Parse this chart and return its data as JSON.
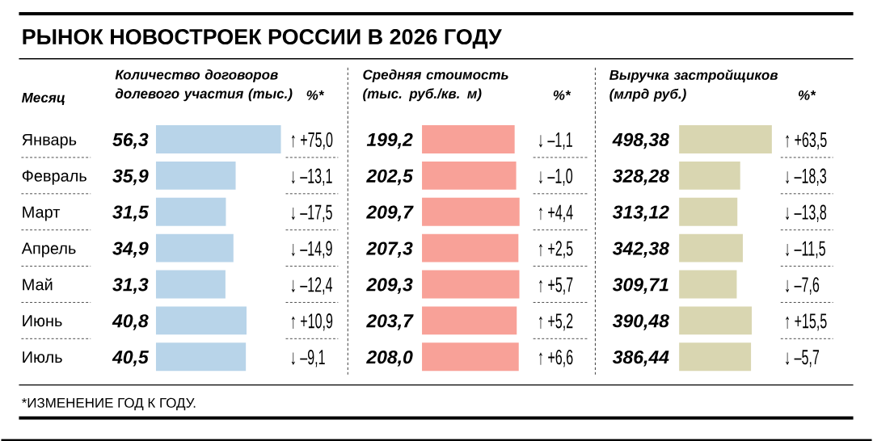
{
  "chart_data": [
    {
      "type": "bar",
      "orientation": "horizontal",
      "title": "РЫНОК НОВОСТРОЕК РОССИИ В 2026 ГОДУ",
      "ylabel": "Месяц",
      "xlabel": "Количество договоров долевого участия (тыс.)",
      "categories": [
        "Январь",
        "Февраль",
        "Март",
        "Апрель",
        "Май",
        "Июнь",
        "Июль"
      ],
      "values": [
        56.3,
        35.9,
        31.5,
        34.9,
        31.3,
        40.8,
        40.5
      ],
      "value_labels": [
        "56,3",
        "35,9",
        "31,5",
        "34,9",
        "31,3",
        "40,8",
        "40,5"
      ],
      "color": "#b8d4e9",
      "xlim": [
        0,
        56.3
      ],
      "tick_labels": "y",
      "annotations": [
        "%*",
        "↑ +75,0",
        "↓ –13,1",
        "↓ –17,5",
        "↓ –14,9",
        "↓ –12,4",
        "↑ +10,9",
        "↓ –9,1",
        "*ИЗМЕНЕНИЕ ГОД К ГОДУ."
      ]
    },
    {
      "type": "bar",
      "orientation": "horizontal",
      "xlabel": "Средняя стоимость (тыс. руб./кв. м)",
      "categories": [
        null,
        null,
        null,
        null,
        null,
        null,
        null
      ],
      "values": [
        199.2,
        202.5,
        209.7,
        207.3,
        209.3,
        203.7,
        208.0
      ],
      "value_labels": [
        "199,2",
        "202,5",
        "209,7",
        "207,3",
        "209,3",
        "203,7",
        "208,0"
      ],
      "color": "#f8a198",
      "xlim": [
        0,
        209.7
      ],
      "tick_labels": false,
      "annotations": [
        "%*",
        "↓ –1,1",
        "↓ –1,0",
        "↑ +4,4",
        "↑ +2,5",
        "↑ +5,7",
        "↑ +5,2",
        "↑ +6,6"
      ]
    },
    {
      "type": "bar",
      "orientation": "horizontal",
      "xlabel": "Выручка застройщиков (млрд руб.)",
      "categories": [
        null,
        null,
        null,
        null,
        null,
        null,
        null
      ],
      "values": [
        498.38,
        328.28,
        313.12,
        342.38,
        309.71,
        390.48,
        386.44
      ],
      "value_labels": [
        "498,38",
        "328,28",
        "313,12",
        "342,38",
        "309,71",
        "390,48",
        "386,44"
      ],
      "color": "#d9d6b1",
      "xlim": [
        0,
        498.38
      ],
      "tick_labels": false,
      "annotations": [
        "%*",
        "↑ +63,5",
        "↓ –18,3",
        "↓ –13,8",
        "↓ –11,5",
        "↓ –7,6",
        "↑ +15,5",
        "↓ –5,7"
      ]
    }
  ]
}
